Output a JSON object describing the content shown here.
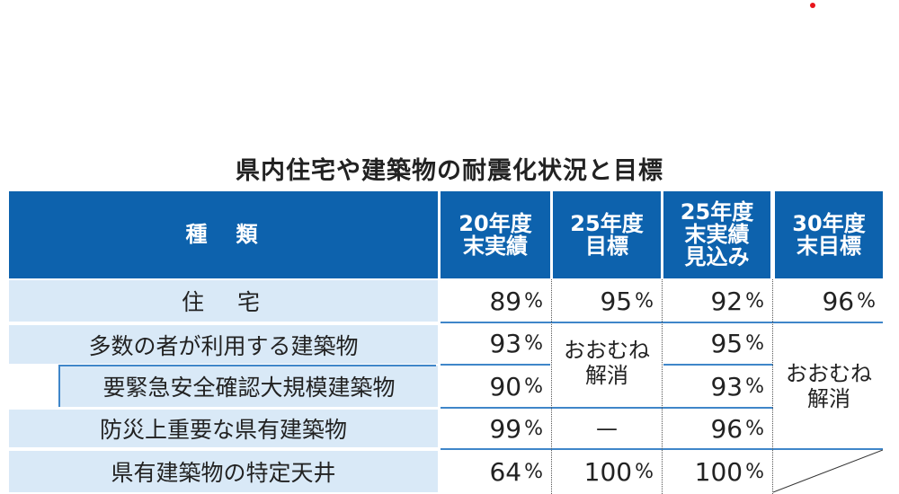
{
  "title": "県内住宅や建築物の耐震化状況と目標",
  "header": {
    "kind": "種　類",
    "cols": [
      "20年度\n末実績",
      "25年度\n目標",
      "25年度\n末実績\n見込み",
      "30年度\n末目標"
    ]
  },
  "rows": [
    {
      "label": "住　宅",
      "v1": "89",
      "v2": "95",
      "v3": "92",
      "v4": "96"
    },
    {
      "label": "多数の者が利用する建築物",
      "v1": "93",
      "v3": "95"
    },
    {
      "label": "要緊急安全確認大規模建築物",
      "v1": "90",
      "v3": "93"
    },
    {
      "label": "防災上重要な県有建築物",
      "v1": "99",
      "v2": "—",
      "v3": "96"
    },
    {
      "label": "県有建築物の特定天井",
      "v1": "64",
      "v2": "100",
      "v3": "100"
    }
  ],
  "merged": {
    "target25": "おおむね\n解消",
    "target30": "おおむね\n解消"
  },
  "unit": "%",
  "colors": {
    "header": "#0d62ad",
    "label_bg": "#d9e9f7",
    "rule": "#3f86c9",
    "dot": "#e8141b"
  }
}
